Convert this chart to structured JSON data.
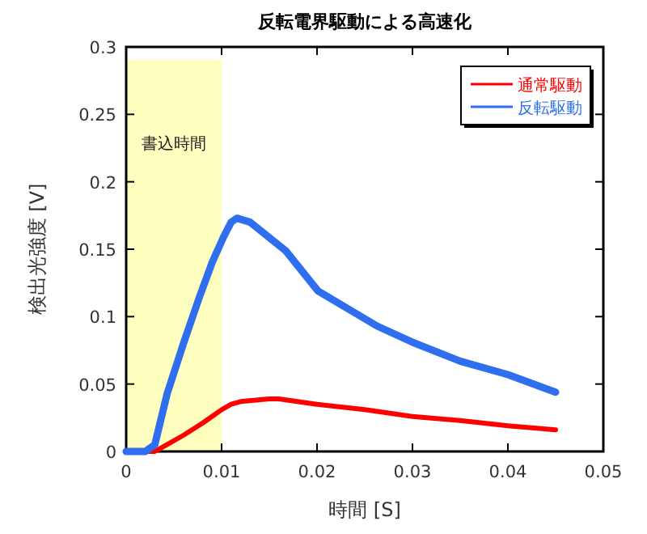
{
  "chart_data": {
    "type": "line",
    "title": "反転電界駆動による高速化",
    "xlabel": "時間 [S]",
    "ylabel": "検出光強度 [V]",
    "xlim": [
      0,
      0.05
    ],
    "ylim": [
      0,
      0.3
    ],
    "xticks": [
      0,
      0.01,
      0.02,
      0.03,
      0.04,
      0.05
    ],
    "yticks": [
      0,
      0.05,
      0.1,
      0.15,
      0.2,
      0.25,
      0.3
    ],
    "legend": "top right",
    "grid": false,
    "bands": [
      {
        "axis": "x",
        "from": 0,
        "to": 0.01,
        "label": "書込時間",
        "color": "#ffffc0"
      }
    ],
    "series": [
      {
        "name": "通常駆動",
        "color": "#ff0000",
        "x": [
          0,
          0.003,
          0.004,
          0.006,
          0.008,
          0.01,
          0.011,
          0.012,
          0.015,
          0.016,
          0.02,
          0.025,
          0.03,
          0.035,
          0.04,
          0.045
        ],
        "values": [
          0,
          0,
          0.004,
          0.012,
          0.021,
          0.031,
          0.035,
          0.037,
          0.039,
          0.039,
          0.035,
          0.031,
          0.026,
          0.023,
          0.019,
          0.016
        ]
      },
      {
        "name": "反転駆動",
        "color": "#2f6fef",
        "x": [
          0,
          0.002,
          0.003,
          0.0043,
          0.006,
          0.0077,
          0.009,
          0.0102,
          0.011,
          0.0116,
          0.013,
          0.0167,
          0.0201,
          0.0263,
          0.03,
          0.035,
          0.04,
          0.045
        ],
        "values": [
          0,
          0,
          0.005,
          0.043,
          0.08,
          0.115,
          0.14,
          0.159,
          0.17,
          0.173,
          0.17,
          0.149,
          0.119,
          0.093,
          0.081,
          0.067,
          0.057,
          0.044
        ]
      }
    ]
  }
}
